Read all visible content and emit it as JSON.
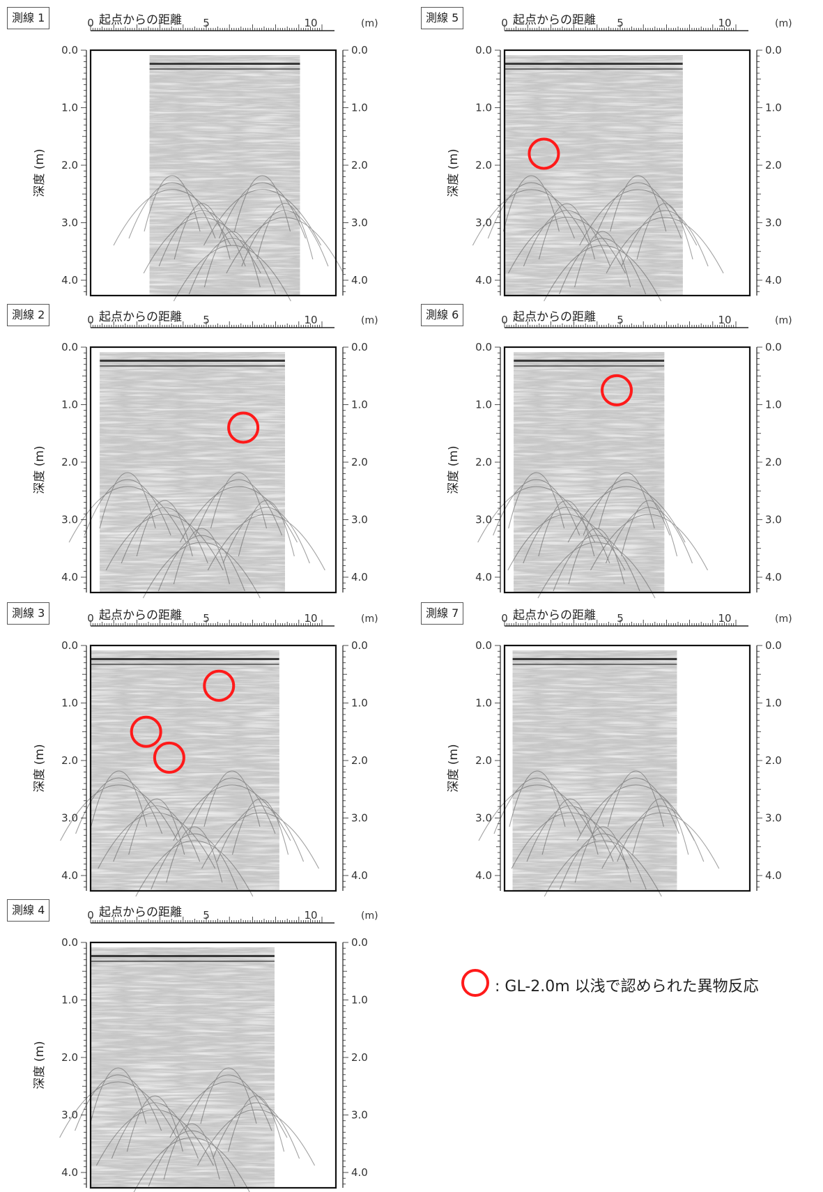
{
  "x_axis": {
    "label": "起点からの距離",
    "unit": "(m)",
    "tick_labels": [
      "0",
      "5",
      "10"
    ]
  },
  "y_axis": {
    "label": "深度 (m)",
    "tick_labels": [
      "0.0",
      "1.0",
      "2.0",
      "3.0",
      "4.0"
    ]
  },
  "colors": {
    "circle": "#ff1a1a",
    "radargram_bg": "#c9c9c9",
    "frame": "#111111"
  },
  "lines": [
    {
      "title": "測線 1",
      "data_start_m": 2.55,
      "data_end_m": 9.05,
      "anomalies": []
    },
    {
      "title": "測線 2",
      "data_start_m": 0.4,
      "data_end_m": 8.4,
      "anomalies": [
        {
          "x_m": 6.6,
          "depth_m": 1.4
        }
      ]
    },
    {
      "title": "測線 3",
      "data_start_m": 0.0,
      "data_end_m": 8.15,
      "anomalies": [
        {
          "x_m": 5.55,
          "depth_m": 0.7
        },
        {
          "x_m": 2.4,
          "depth_m": 1.5
        },
        {
          "x_m": 3.4,
          "depth_m": 1.95
        }
      ]
    },
    {
      "title": "測線 4",
      "data_start_m": 0.0,
      "data_end_m": 7.95,
      "anomalies": []
    },
    {
      "title": "測線 5",
      "data_start_m": 0.0,
      "data_end_m": 7.7,
      "anomalies": [
        {
          "x_m": 1.7,
          "depth_m": 1.8
        }
      ]
    },
    {
      "title": "測線 6",
      "data_start_m": 0.4,
      "data_end_m": 6.9,
      "anomalies": [
        {
          "x_m": 4.85,
          "depth_m": 0.75
        }
      ]
    },
    {
      "title": "測線 7",
      "data_start_m": 0.35,
      "data_end_m": 7.45,
      "anomalies": []
    }
  ],
  "legend": {
    "text": ": GL-2.0m 以浅で認められた異物反応"
  }
}
